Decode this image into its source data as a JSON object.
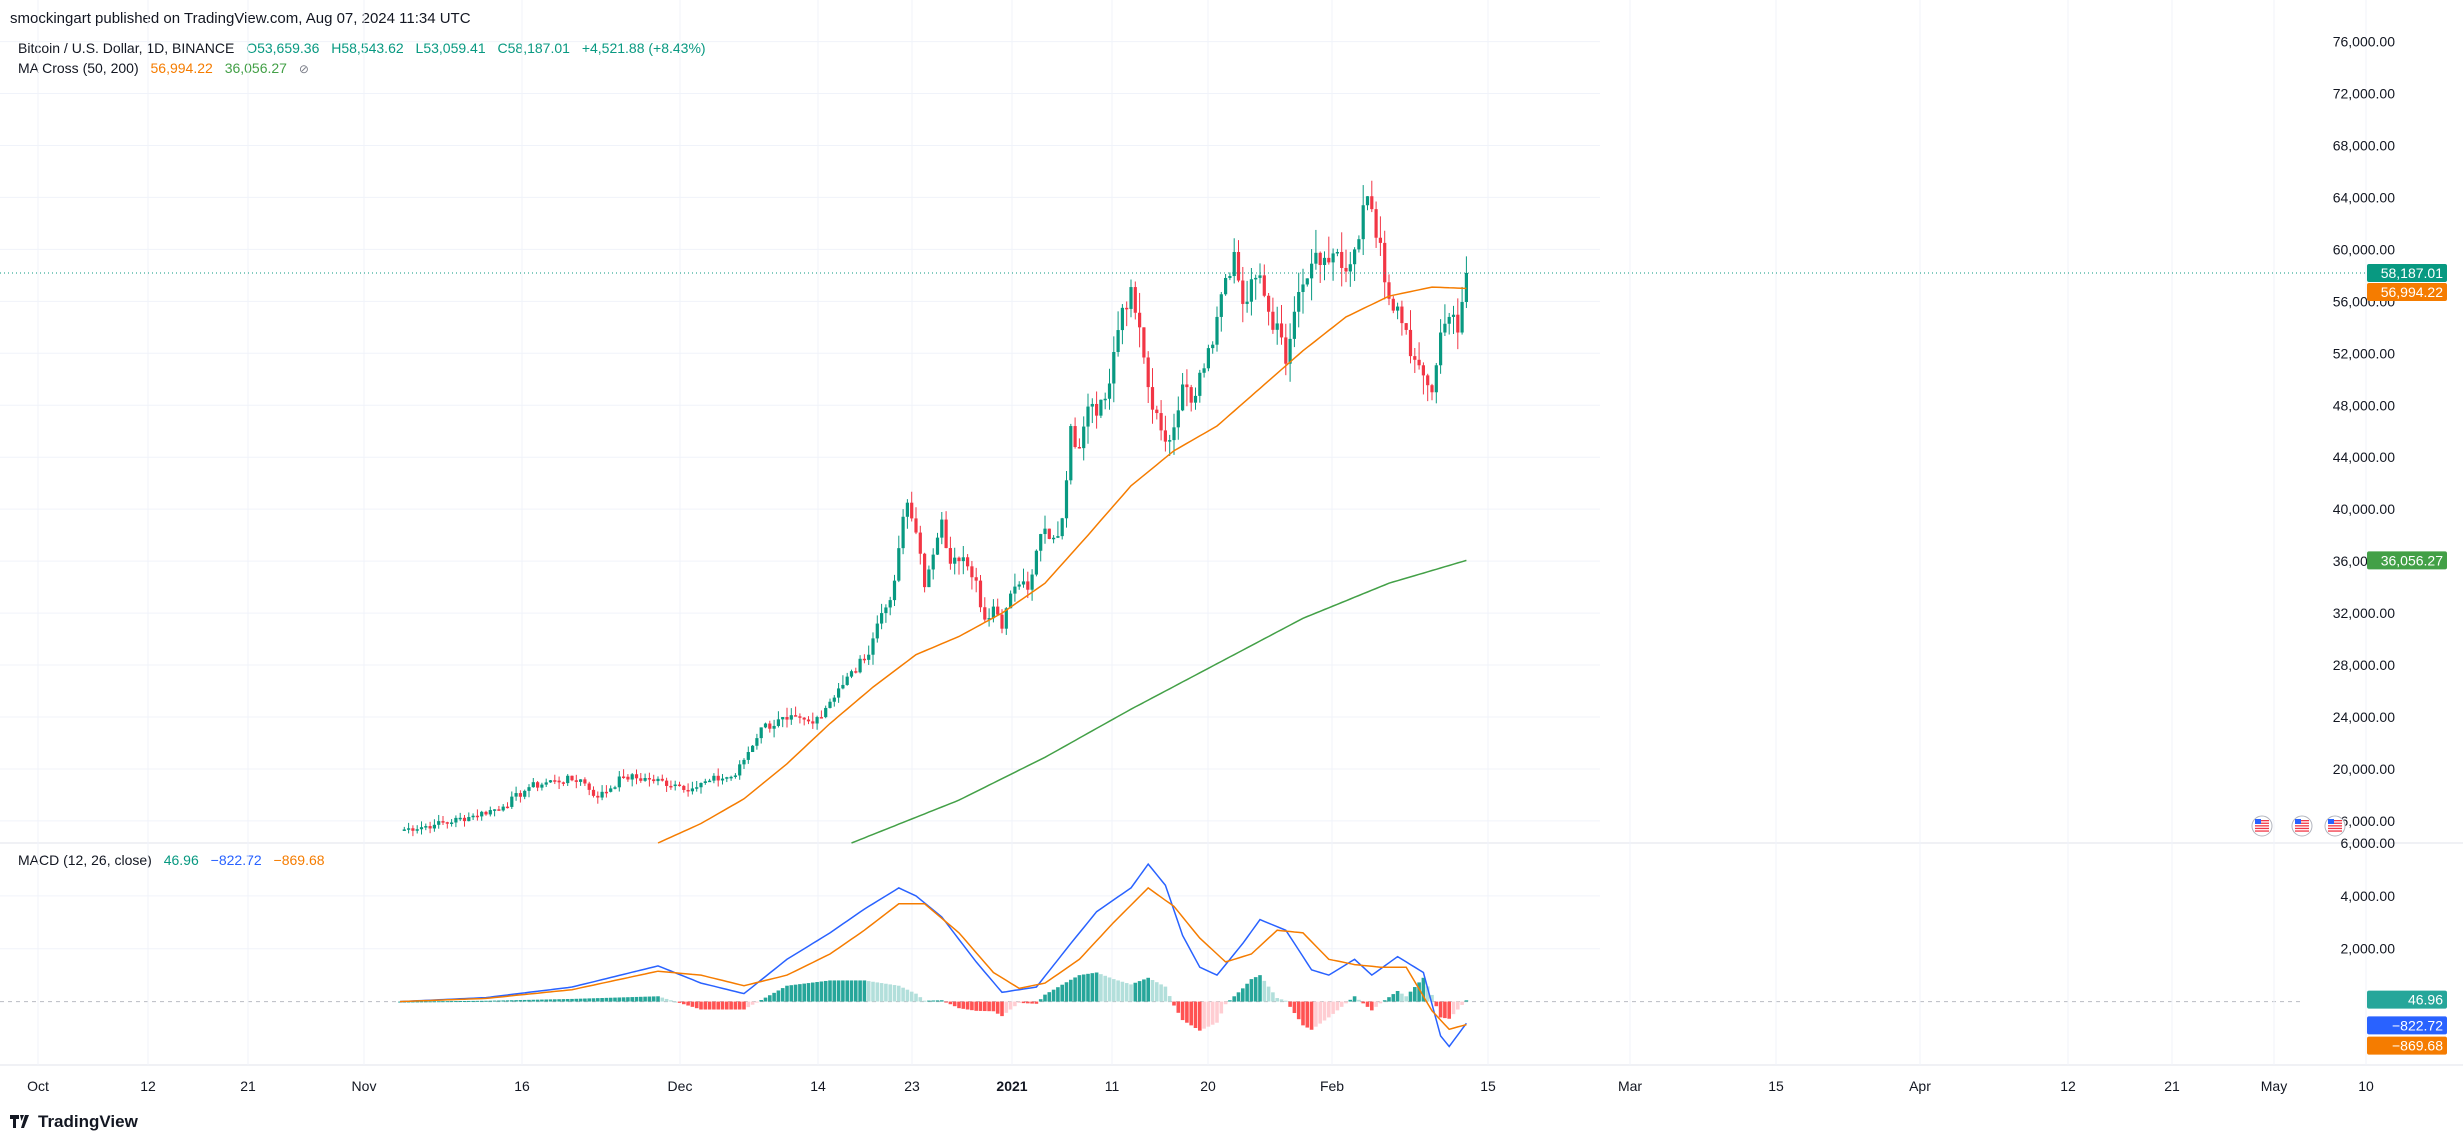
{
  "header": {
    "text": "smockingart published on TradingView.com, Aug 07, 2024 11:34 UTC"
  },
  "symbol": {
    "title": "Bitcoin / U.S. Dollar, 1D, BINANCE",
    "open": "O53,659.36",
    "high": "H58,543.62",
    "low": "L53,059.41",
    "close": "C58,187.01",
    "change": "+4,521.88 (+8.43%)"
  },
  "ma_legend": {
    "label": "MA Cross (50, 200)",
    "ma50": "56,994.22",
    "ma200": "36,056.27",
    "icon": "eye-off-icon"
  },
  "macd_legend": {
    "label": "MACD (12, 26, close)",
    "hist": "46.96",
    "macd": "−822.72",
    "signal": "−869.68"
  },
  "footer": {
    "logo": "TradingView",
    "icon": "tradingview-logo-icon"
  },
  "colors": {
    "up": "#089981",
    "down": "#f23645",
    "ma50": "#f57c00",
    "ma200": "#43a047",
    "macd": "#2962ff",
    "signal": "#f57c00",
    "hist_up": "#26a69a",
    "hist_up_light": "#b2dfdb",
    "hist_down": "#ff5252",
    "hist_down_light": "#ffcdd2",
    "grid": "#f0f3fa"
  },
  "chart_data": [
    {
      "type": "candlestick",
      "title": "Bitcoin / U.S. Dollar, 1D, BINANCE",
      "x_axis_labels": [
        "Oct",
        "12",
        "21",
        "Nov",
        "16",
        "Dec",
        "14",
        "23",
        "2021",
        "11",
        "20",
        "Feb",
        "15",
        "Mar",
        "15",
        "Apr",
        "12",
        "21",
        "May",
        "10"
      ],
      "y_axis_labels": [
        "16,000.00",
        "20,000.00",
        "24,000.00",
        "28,000.00",
        "32,000.00",
        "36,000.00",
        "40,000.00",
        "44,000.00",
        "48,000.00",
        "52,000.00",
        "56,000.00",
        "60,000.00",
        "64,000.00",
        "68,000.00",
        "72,000.00",
        "76,000.00"
      ],
      "ylim": [
        14300,
        79200
      ],
      "grid": true,
      "price_labels": {
        "last": "58,187.01",
        "ma50": "56,994.22",
        "ma200": "36,056.27"
      },
      "close_path": [
        [
          0,
          15300
        ],
        [
          8,
          15700
        ],
        [
          16,
          16300
        ],
        [
          24,
          17100
        ],
        [
          30,
          18600
        ],
        [
          36,
          19100
        ],
        [
          42,
          19200
        ],
        [
          46,
          17800
        ],
        [
          52,
          19400
        ],
        [
          58,
          19200
        ],
        [
          64,
          18800
        ],
        [
          68,
          18500
        ],
        [
          72,
          19100
        ],
        [
          78,
          19500
        ],
        [
          84,
          23200
        ],
        [
          90,
          23800
        ],
        [
          96,
          23500
        ],
        [
          102,
          26200
        ],
        [
          108,
          28400
        ],
        [
          112,
          32000
        ],
        [
          114,
          33000
        ],
        [
          116,
          37000
        ],
        [
          118,
          40500
        ],
        [
          120,
          38200
        ],
        [
          122,
          34000
        ],
        [
          124,
          36500
        ],
        [
          126,
          39200
        ],
        [
          128,
          35800
        ],
        [
          130,
          36000
        ],
        [
          132,
          35600
        ],
        [
          134,
          34500
        ],
        [
          136,
          31500
        ],
        [
          138,
          32500
        ],
        [
          140,
          30800
        ],
        [
          142,
          33500
        ],
        [
          144,
          34200
        ],
        [
          146,
          33800
        ],
        [
          148,
          36800
        ],
        [
          150,
          38500
        ],
        [
          152,
          37800
        ],
        [
          154,
          39300
        ],
        [
          156,
          46400
        ],
        [
          158,
          44700
        ],
        [
          160,
          47900
        ],
        [
          162,
          47200
        ],
        [
          164,
          48500
        ],
        [
          166,
          52100
        ],
        [
          168,
          55500
        ],
        [
          170,
          57100
        ],
        [
          172,
          54000
        ],
        [
          174,
          49400
        ],
        [
          176,
          47400
        ],
        [
          178,
          45200
        ],
        [
          180,
          46300
        ],
        [
          182,
          49600
        ],
        [
          184,
          48200
        ],
        [
          186,
          50500
        ],
        [
          188,
          52400
        ],
        [
          190,
          54800
        ],
        [
          192,
          57800
        ],
        [
          194,
          59800
        ],
        [
          196,
          55800
        ],
        [
          198,
          57700
        ],
        [
          200,
          58000
        ],
        [
          202,
          55200
        ],
        [
          204,
          54300
        ],
        [
          206,
          51200
        ],
        [
          208,
          55200
        ],
        [
          210,
          57300
        ],
        [
          212,
          58900
        ],
        [
          214,
          58800
        ],
        [
          216,
          59000
        ],
        [
          218,
          59800
        ],
        [
          220,
          58300
        ],
        [
          222,
          60000
        ],
        [
          224,
          63400
        ],
        [
          226,
          63100
        ],
        [
          228,
          60500
        ],
        [
          230,
          56200
        ],
        [
          232,
          55600
        ],
        [
          234,
          53800
        ],
        [
          236,
          51500
        ],
        [
          238,
          50300
        ],
        [
          240,
          49000
        ],
        [
          242,
          53600
        ],
        [
          244,
          54800
        ],
        [
          246,
          53600
        ],
        [
          248,
          58187
        ]
      ],
      "ma50_path": [
        [
          60,
          14300
        ],
        [
          70,
          15800
        ],
        [
          80,
          17700
        ],
        [
          90,
          20400
        ],
        [
          100,
          23500
        ],
        [
          110,
          26300
        ],
        [
          120,
          28800
        ],
        [
          130,
          30200
        ],
        [
          140,
          32000
        ],
        [
          150,
          34300
        ],
        [
          160,
          38000
        ],
        [
          170,
          41800
        ],
        [
          180,
          44500
        ],
        [
          190,
          46400
        ],
        [
          200,
          49300
        ],
        [
          210,
          52200
        ],
        [
          220,
          54800
        ],
        [
          230,
          56400
        ],
        [
          240,
          57100
        ],
        [
          248,
          56994
        ]
      ],
      "ma200_path": [
        [
          105,
          14300
        ],
        [
          130,
          17600
        ],
        [
          150,
          20900
        ],
        [
          170,
          24600
        ],
        [
          190,
          28100
        ],
        [
          210,
          31600
        ],
        [
          230,
          34300
        ],
        [
          248,
          36056
        ]
      ]
    },
    {
      "type": "bar+line",
      "title": "MACD (12, 26, close)",
      "y_axis_labels": [
        "6,000.00",
        "4,000.00",
        "2,000.00"
      ],
      "ylim": [
        -2400,
        6000
      ],
      "macd_path": [
        [
          0,
          0
        ],
        [
          20,
          150
        ],
        [
          40,
          550
        ],
        [
          60,
          1350
        ],
        [
          70,
          700
        ],
        [
          80,
          300
        ],
        [
          90,
          1600
        ],
        [
          100,
          2600
        ],
        [
          108,
          3500
        ],
        [
          116,
          4300
        ],
        [
          120,
          4000
        ],
        [
          126,
          3200
        ],
        [
          134,
          1500
        ],
        [
          140,
          350
        ],
        [
          148,
          550
        ],
        [
          156,
          2200
        ],
        [
          162,
          3400
        ],
        [
          170,
          4300
        ],
        [
          174,
          5200
        ],
        [
          178,
          4400
        ],
        [
          182,
          2500
        ],
        [
          186,
          1300
        ],
        [
          190,
          1000
        ],
        [
          196,
          2200
        ],
        [
          200,
          3100
        ],
        [
          206,
          2700
        ],
        [
          212,
          1200
        ],
        [
          216,
          1000
        ],
        [
          222,
          1600
        ],
        [
          226,
          1000
        ],
        [
          232,
          1700
        ],
        [
          238,
          1100
        ],
        [
          242,
          -1300
        ],
        [
          244,
          -1700
        ],
        [
          248,
          -823
        ]
      ],
      "signal_path": [
        [
          0,
          0
        ],
        [
          20,
          120
        ],
        [
          40,
          450
        ],
        [
          60,
          1150
        ],
        [
          70,
          1000
        ],
        [
          80,
          600
        ],
        [
          90,
          1000
        ],
        [
          100,
          1800
        ],
        [
          108,
          2700
        ],
        [
          116,
          3700
        ],
        [
          122,
          3700
        ],
        [
          130,
          2600
        ],
        [
          138,
          1100
        ],
        [
          144,
          500
        ],
        [
          150,
          700
        ],
        [
          158,
          1600
        ],
        [
          166,
          3000
        ],
        [
          174,
          4300
        ],
        [
          180,
          3600
        ],
        [
          186,
          2400
        ],
        [
          192,
          1500
        ],
        [
          198,
          1800
        ],
        [
          204,
          2700
        ],
        [
          210,
          2600
        ],
        [
          216,
          1600
        ],
        [
          222,
          1400
        ],
        [
          228,
          1300
        ],
        [
          234,
          1300
        ],
        [
          240,
          -350
        ],
        [
          244,
          -1050
        ],
        [
          248,
          -870
        ]
      ]
    }
  ]
}
